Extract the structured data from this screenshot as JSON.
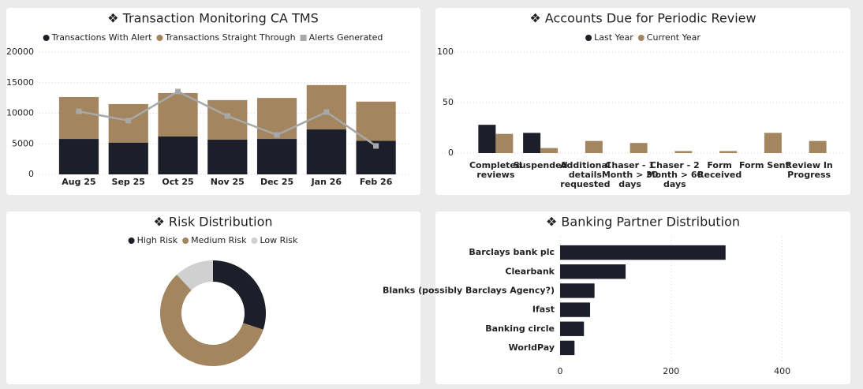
{
  "chart_data": [
    {
      "type": "bar",
      "stacked": true,
      "title": "❖ Transaction Monitoring CA TMS",
      "categories": [
        "Aug 25",
        "Sep 25",
        "Oct 25",
        "Nov 25",
        "Dec 25",
        "Jan 26",
        "Feb 26"
      ],
      "series": [
        {
          "name": "Transactions With Alert",
          "color": "#1c1f2a",
          "values": [
            5800,
            5200,
            6200,
            5700,
            5800,
            7350,
            5500
          ]
        },
        {
          "name": "Transactions Straight Through",
          "color": "#a3865f",
          "values": [
            6850,
            6300,
            7100,
            6450,
            6700,
            7250,
            6400
          ]
        },
        {
          "name": "Alerts Generated",
          "type": "line",
          "color": "#a8a8a8",
          "values": [
            10300,
            8800,
            13550,
            9550,
            6450,
            10200,
            4650
          ]
        }
      ],
      "ylim": [
        0,
        20000
      ],
      "yticks": [
        0,
        5000,
        10000,
        15000,
        20000
      ],
      "grid": true
    },
    {
      "type": "bar",
      "stacked": false,
      "title": "❖ Accounts Due for Periodic Review",
      "categories": [
        "Completed reviews",
        "Suspended",
        "Additional details requested",
        "Chaser - 1 Month > 30 days",
        "Chaser - 2 Month > 60 days",
        "Form Received",
        "Form Sent",
        "Review In Progress"
      ],
      "series": [
        {
          "name": "Last Year",
          "color": "#1c1f2a",
          "values": [
            28,
            20,
            0,
            0,
            0,
            0,
            0,
            0
          ]
        },
        {
          "name": "Current Year",
          "color": "#a3865f",
          "values": [
            19,
            5,
            12,
            10,
            2,
            2,
            20,
            12
          ]
        }
      ],
      "ylim": [
        0,
        100
      ],
      "yticks": [
        0,
        50,
        100
      ],
      "grid": true
    },
    {
      "type": "donut",
      "title": "❖ Risk Distribution",
      "categories": [
        "High Risk",
        "Medium Risk",
        "Low Risk"
      ],
      "values": [
        30,
        58,
        12
      ],
      "colors": [
        "#1c1f2a",
        "#a3865f",
        "#d0d0d0"
      ]
    },
    {
      "type": "hbar",
      "title": "❖ Banking Partner Distribution",
      "categories": [
        "Barclays bank plc",
        "Clearbank",
        "Blanks (possibly Barclays Agency?)",
        "Ifast",
        "Banking circle",
        "WorldPay"
      ],
      "values": [
        298,
        118,
        62,
        54,
        43,
        26
      ],
      "color": "#1c1f2a",
      "xlim": [
        0,
        500
      ],
      "xticks": [
        0,
        200,
        400
      ],
      "grid": true
    }
  ]
}
